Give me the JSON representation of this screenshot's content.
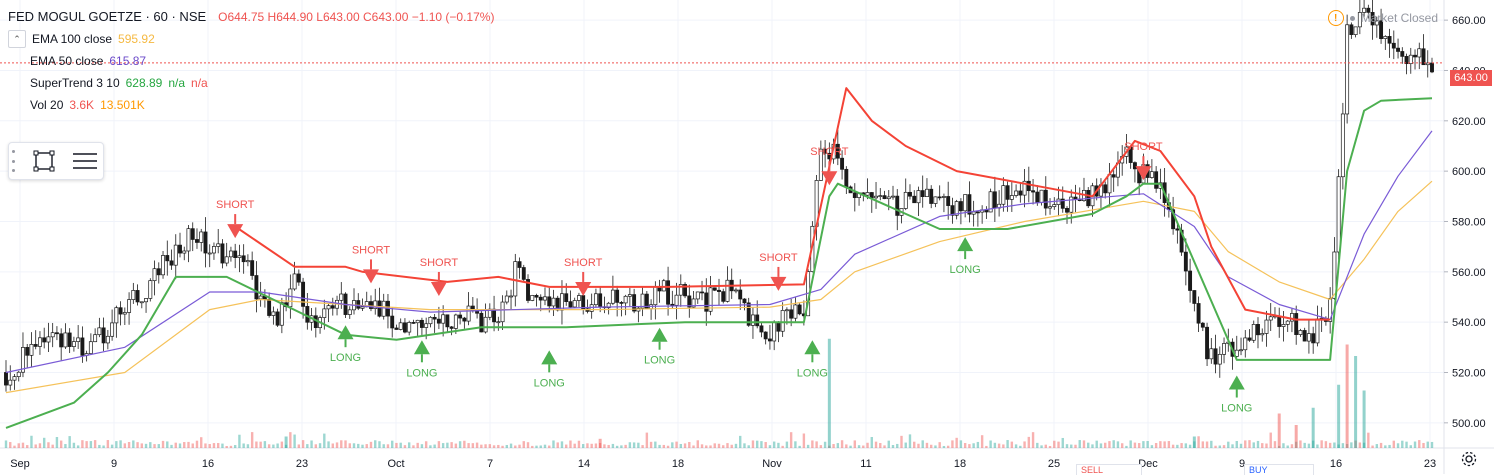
{
  "header": {
    "symbol": "FED MOGUL GOETZE · 60 · NSE",
    "open": "O644.75",
    "high": "H644.90",
    "low": "L643.00",
    "close": "C643.00",
    "change": "−1.10 (−0.17%)"
  },
  "indicators": [
    {
      "label": "EMA 100 close",
      "value": "595.92",
      "color": "#f5b942"
    },
    {
      "label": "EMA 50 close",
      "value": "615.87",
      "color": "#6a48c9"
    },
    {
      "label": "SuperTrend 3 10",
      "value": "628.89",
      "extra1": "n/a",
      "extra2": "n/a",
      "color": "#26a641",
      "extra_color": "#ef5350"
    },
    {
      "label": "Vol 20",
      "value": "3.6K",
      "extra1": "13.501K",
      "color": "#ef5350",
      "extra_color": "#ff9800"
    }
  ],
  "market_status": "Market Closed",
  "last_price_tag": "643.00",
  "bottom_tabs": [
    "SELL",
    "BUY"
  ],
  "chart_data": {
    "type": "candlestick",
    "colors": {
      "up": "#26a69a",
      "down": "#ef5350",
      "ema100": "#f5c25a",
      "ema50": "#7a5bd6",
      "st_up": "#4caf50",
      "st_down": "#f44336",
      "last_price_line": "#ef5350"
    },
    "y_axis": {
      "ticks": [
        500,
        520,
        540,
        560,
        580,
        600,
        620,
        640,
        660
      ],
      "labels": [
        "500.00",
        "520.00",
        "540.00",
        "560.00",
        "580.00",
        "600.00",
        "620.00",
        "640.00",
        "660.00"
      ],
      "range": [
        490,
        668
      ]
    },
    "x_axis": {
      "ticks": [
        "Sep",
        "9",
        "16",
        "23",
        "Oct",
        "7",
        "14",
        "18",
        "Nov",
        "11",
        "18",
        "25",
        "Dec",
        "9",
        "16",
        "23"
      ]
    },
    "price_path": [
      [
        0,
        520
      ],
      [
        6,
        535
      ],
      [
        10,
        530
      ],
      [
        14,
        545
      ],
      [
        18,
        560
      ],
      [
        22,
        575
      ],
      [
        24,
        570
      ],
      [
        28,
        565
      ],
      [
        30,
        548
      ],
      [
        32,
        540
      ],
      [
        34,
        555
      ],
      [
        36,
        540
      ],
      [
        40,
        548
      ],
      [
        44,
        545
      ],
      [
        46,
        540
      ],
      [
        50,
        538
      ],
      [
        54,
        542
      ],
      [
        58,
        540
      ],
      [
        60,
        560
      ],
      [
        62,
        550
      ],
      [
        66,
        548
      ],
      [
        70,
        550
      ],
      [
        74,
        548
      ],
      [
        78,
        552
      ],
      [
        82,
        548
      ],
      [
        86,
        553
      ],
      [
        88,
        540
      ],
      [
        90,
        535
      ],
      [
        92,
        545
      ],
      [
        94,
        545
      ],
      [
        96,
        612
      ],
      [
        98,
        605
      ],
      [
        100,
        590
      ],
      [
        104,
        585
      ],
      [
        108,
        590
      ],
      [
        112,
        585
      ],
      [
        116,
        588
      ],
      [
        120,
        592
      ],
      [
        124,
        586
      ],
      [
        128,
        590
      ],
      [
        132,
        605
      ],
      [
        134,
        598
      ],
      [
        136,
        592
      ],
      [
        138,
        575
      ],
      [
        140,
        545
      ],
      [
        142,
        525
      ],
      [
        144,
        530
      ],
      [
        146,
        532
      ],
      [
        148,
        540
      ],
      [
        150,
        540
      ],
      [
        152,
        538
      ],
      [
        154,
        535
      ],
      [
        156,
        545
      ],
      [
        158,
        655
      ],
      [
        160,
        660
      ],
      [
        162,
        655
      ],
      [
        164,
        650
      ],
      [
        166,
        645
      ],
      [
        168,
        643
      ]
    ],
    "ema50": [
      [
        0,
        520
      ],
      [
        14,
        530
      ],
      [
        24,
        552
      ],
      [
        30,
        552
      ],
      [
        40,
        547
      ],
      [
        50,
        544
      ],
      [
        70,
        546
      ],
      [
        90,
        547
      ],
      [
        96,
        553
      ],
      [
        100,
        567
      ],
      [
        110,
        582
      ],
      [
        120,
        587
      ],
      [
        134,
        591
      ],
      [
        140,
        578
      ],
      [
        144,
        558
      ],
      [
        150,
        547
      ],
      [
        156,
        541
      ],
      [
        160,
        575
      ],
      [
        164,
        598
      ],
      [
        168,
        616
      ]
    ],
    "ema100": [
      [
        0,
        512
      ],
      [
        14,
        520
      ],
      [
        24,
        545
      ],
      [
        30,
        549
      ],
      [
        40,
        547
      ],
      [
        50,
        545
      ],
      [
        70,
        545
      ],
      [
        90,
        546
      ],
      [
        96,
        549
      ],
      [
        100,
        560
      ],
      [
        110,
        572
      ],
      [
        120,
        580
      ],
      [
        134,
        588
      ],
      [
        140,
        584
      ],
      [
        144,
        568
      ],
      [
        150,
        556
      ],
      [
        156,
        549
      ],
      [
        160,
        565
      ],
      [
        164,
        584
      ],
      [
        168,
        596
      ]
    ],
    "supertrend_up": [
      [
        0,
        498
      ],
      [
        8,
        508
      ],
      [
        12,
        520
      ],
      [
        16,
        535
      ],
      [
        20,
        558
      ],
      [
        26,
        558
      ],
      [
        40,
        535
      ],
      [
        46,
        533
      ],
      [
        56,
        538
      ],
      [
        66,
        538
      ],
      [
        80,
        540
      ],
      [
        94,
        540
      ],
      [
        97,
        590
      ],
      [
        98,
        595
      ],
      [
        110,
        577
      ],
      [
        118,
        577
      ],
      [
        128,
        583
      ],
      [
        132,
        590
      ],
      [
        134,
        595
      ],
      [
        136,
        595
      ],
      [
        145,
        525
      ],
      [
        152,
        525
      ],
      [
        156,
        525
      ],
      [
        158,
        600
      ],
      [
        160,
        624
      ],
      [
        162,
        628
      ],
      [
        168,
        629
      ]
    ],
    "supertrend_down": [
      [
        27,
        578
      ],
      [
        34,
        562
      ],
      [
        40,
        562
      ],
      [
        42,
        560
      ],
      [
        52,
        556
      ],
      [
        58,
        558
      ],
      [
        64,
        554
      ],
      [
        78,
        554
      ],
      [
        94,
        555
      ],
      [
        99,
        633
      ],
      [
        102,
        620
      ],
      [
        106,
        610
      ],
      [
        112,
        600
      ],
      [
        120,
        595
      ],
      [
        128,
        590
      ],
      [
        133,
        612
      ],
      [
        136,
        608
      ],
      [
        140,
        590
      ],
      [
        142,
        570
      ],
      [
        146,
        545
      ],
      [
        152,
        541
      ],
      [
        156,
        541
      ]
    ],
    "signals": [
      {
        "label": "SHORT",
        "x": 27,
        "price": 575
      },
      {
        "label": "LONG",
        "x": 40,
        "price": 538
      },
      {
        "label": "SHORT",
        "x": 43,
        "price": 557
      },
      {
        "label": "SHORT",
        "x": 51,
        "price": 552
      },
      {
        "label": "LONG",
        "x": 49,
        "price": 532
      },
      {
        "label": "LONG",
        "x": 64,
        "price": 528
      },
      {
        "label": "SHORT",
        "x": 68,
        "price": 552
      },
      {
        "label": "LONG",
        "x": 77,
        "price": 537
      },
      {
        "label": "SHORT",
        "x": 91,
        "price": 554
      },
      {
        "label": "LONG",
        "x": 95,
        "price": 532
      },
      {
        "label": "SHORT",
        "x": 97,
        "price": 596
      },
      {
        "label": "LONG",
        "x": 113,
        "price": 573
      },
      {
        "label": "SHORT",
        "x": 134,
        "price": 598
      },
      {
        "label": "LONG",
        "x": 145,
        "price": 518
      }
    ],
    "volume_spikes": [
      [
        97,
        0.95
      ],
      [
        150,
        0.3
      ],
      [
        154,
        0.35
      ],
      [
        157,
        0.55
      ],
      [
        158,
        0.9
      ],
      [
        159,
        0.8
      ],
      [
        160,
        0.5
      ],
      [
        152,
        0.2
      ],
      [
        140,
        0.1
      ],
      [
        33,
        0.1
      ],
      [
        70,
        0.08
      ]
    ]
  }
}
